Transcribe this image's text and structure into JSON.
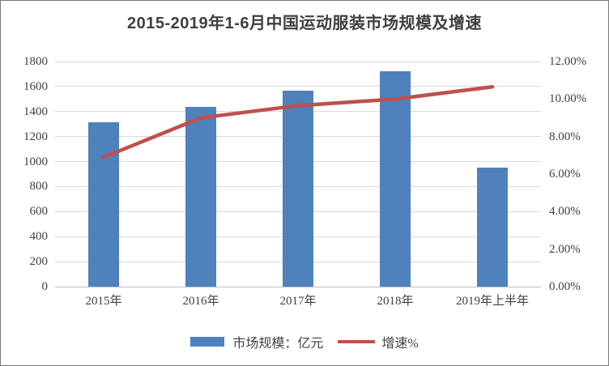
{
  "title": "2015-2019年1-6月中国运动服装市场规模及增速",
  "colors": {
    "bar": "#4f81bd",
    "line": "#c0504d",
    "grid": "#d9d9d9",
    "axis_text": "#404040",
    "border": "#7b7b7b"
  },
  "chart_data": {
    "type": "bar+line combo",
    "title": "2015-2019年1-6月中国运动服装市场规模及增速",
    "categories": [
      "2015年",
      "2016年",
      "2017年",
      "2018年",
      "2019年上半年"
    ],
    "series": [
      {
        "name": "市场规模：亿元",
        "type": "bar",
        "axis": "left",
        "values": [
          1315,
          1440,
          1565,
          1725,
          950
        ]
      },
      {
        "name": "增速%",
        "type": "line",
        "axis": "right",
        "values": [
          6.9,
          9.0,
          9.65,
          10.0,
          10.65
        ]
      }
    ],
    "left_axis": {
      "min": 0,
      "max": 1800,
      "step": 200,
      "tick_labels_top_to_bottom": [
        "1800",
        "1600",
        "1400",
        "1200",
        "1000",
        "800",
        "600",
        "400",
        "200",
        "0"
      ]
    },
    "right_axis": {
      "min": 0,
      "max": 12,
      "step": 2,
      "tick_labels_top_to_bottom": [
        "12.00%",
        "10.00%",
        "8.00%",
        "6.00%",
        "4.00%",
        "2.00%",
        "0.00%"
      ]
    },
    "grid": "horizontal",
    "legend_position": "bottom"
  }
}
